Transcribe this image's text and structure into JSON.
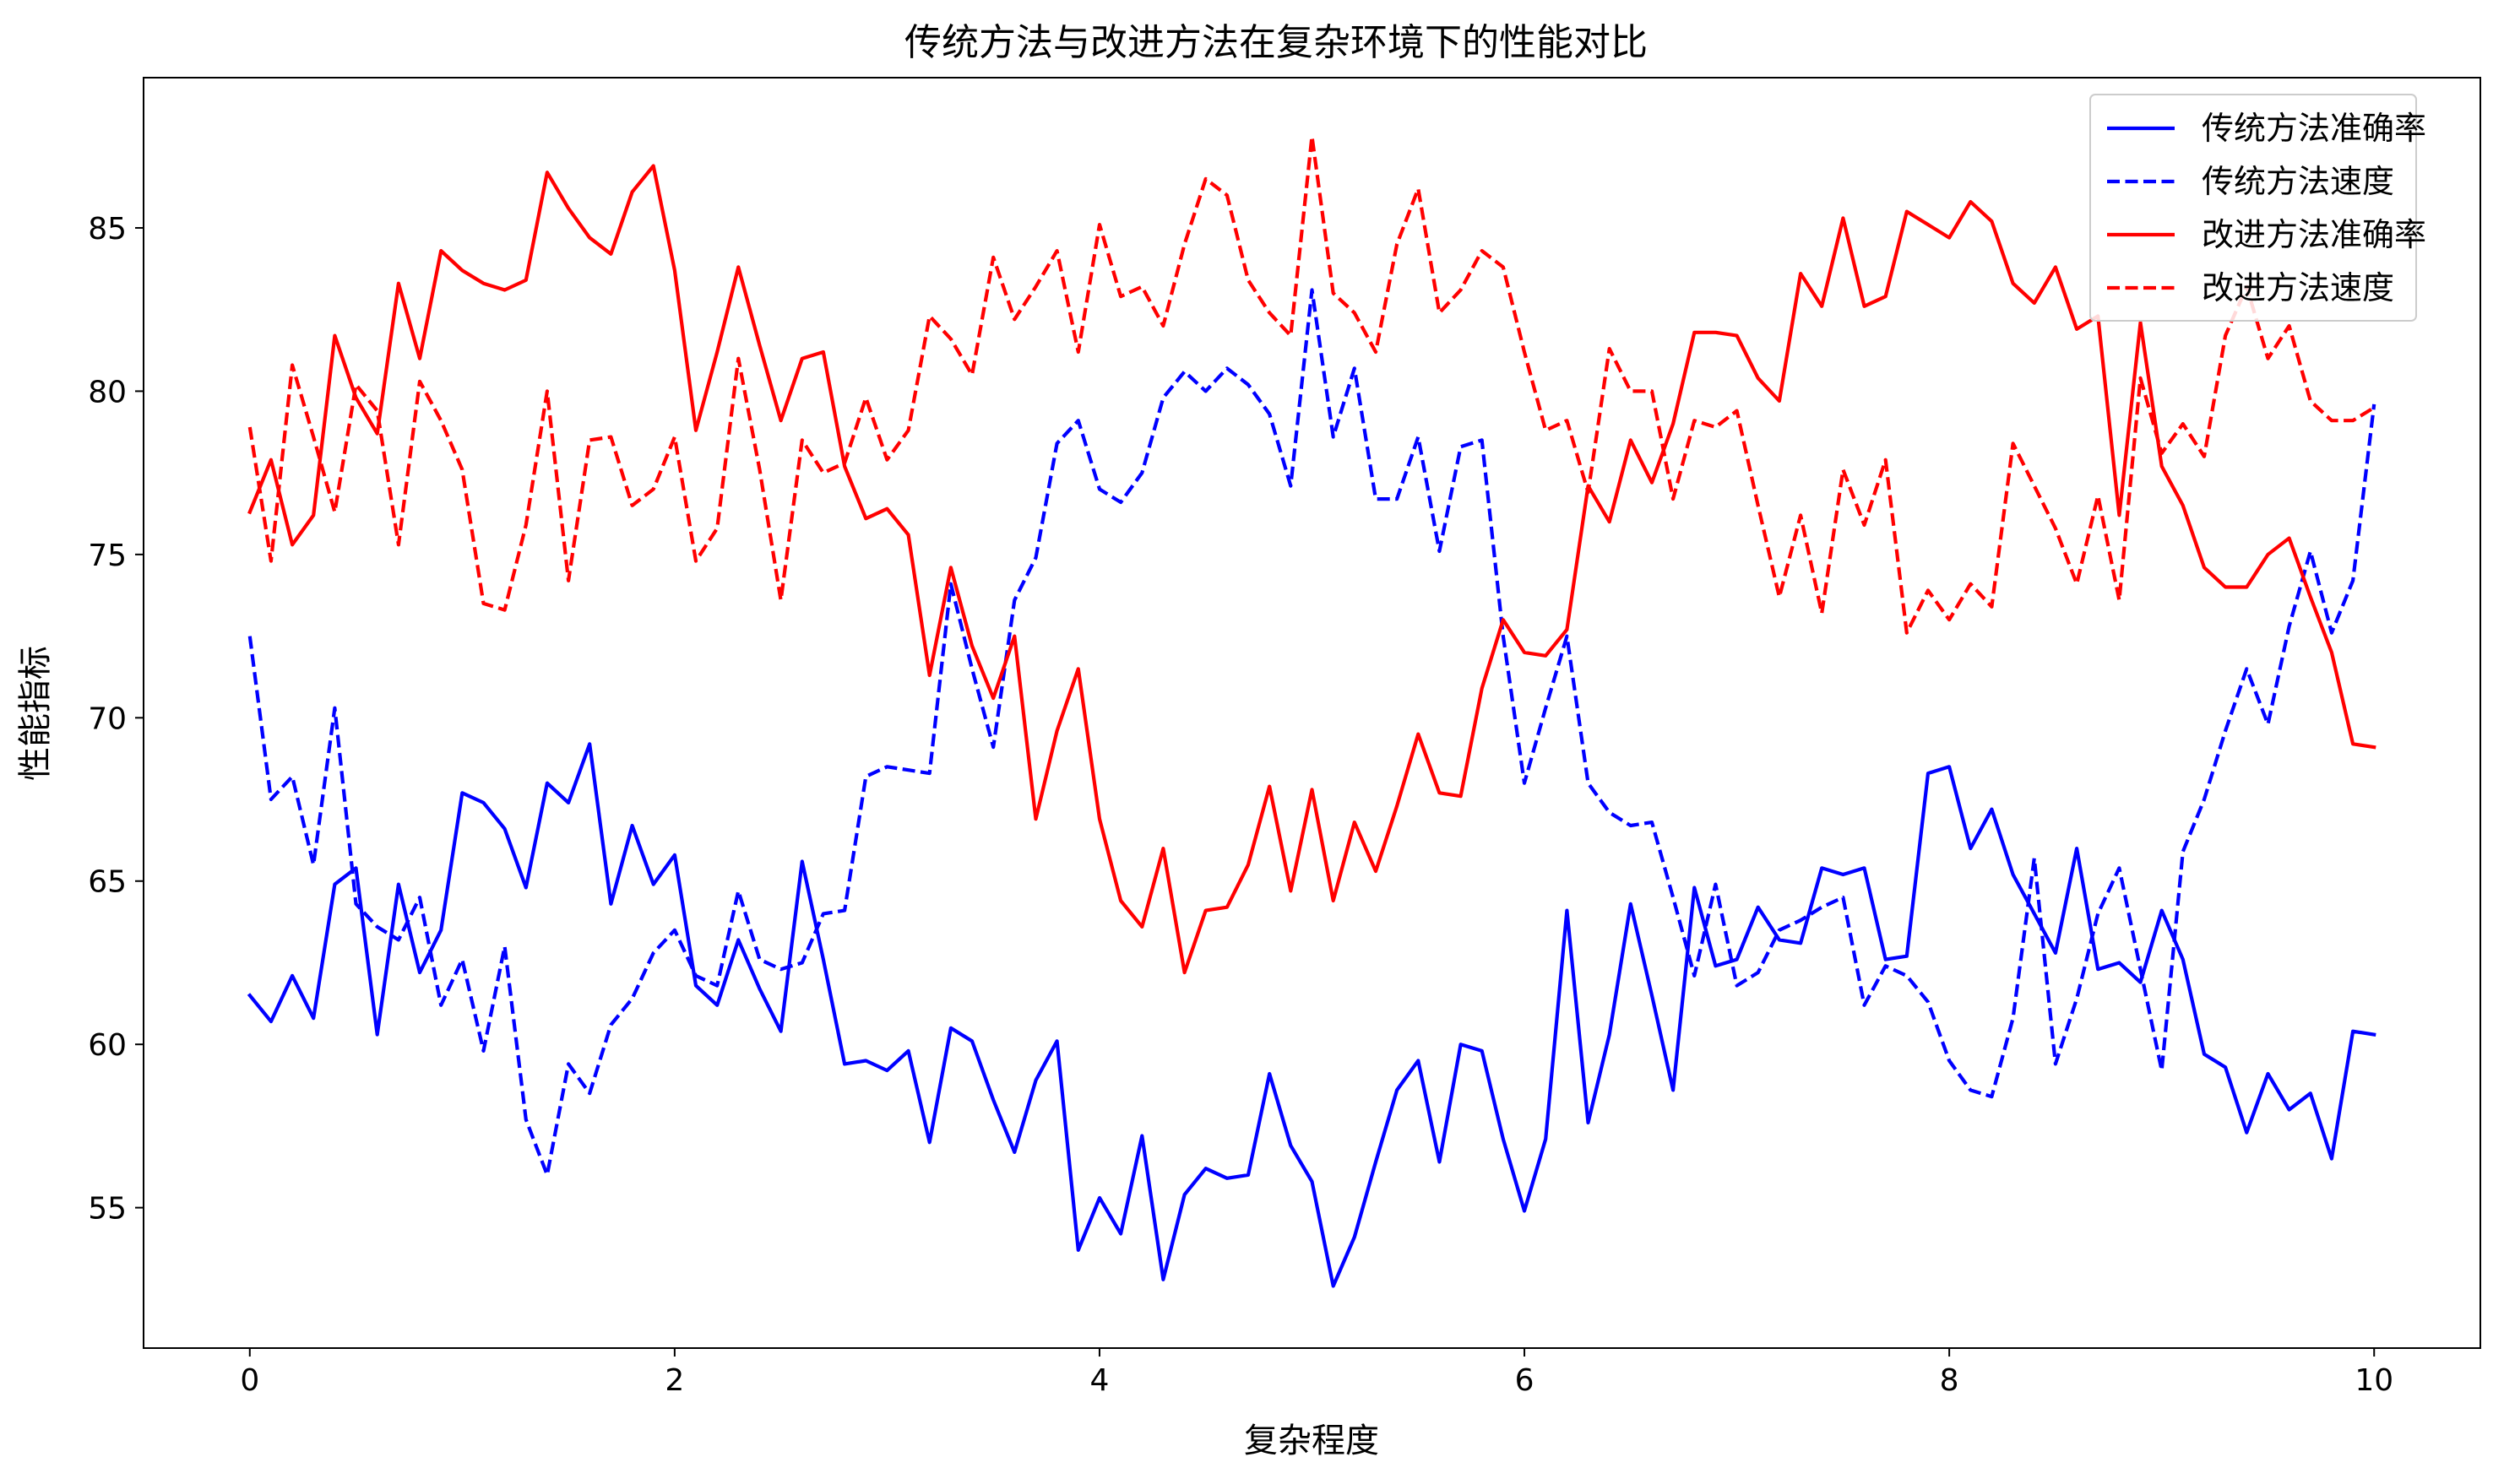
{
  "chart_data": {
    "type": "line",
    "title": "传统方法与改进方法在复杂环境下的性能对比",
    "xlabel": "复杂程度",
    "ylabel": "性能指标",
    "xlim": [
      -0.5,
      10.5
    ],
    "ylim": [
      50.7,
      89.6
    ],
    "xticks": [
      0,
      2,
      4,
      6,
      8,
      10
    ],
    "xtick_labels": [
      "0",
      "2",
      "4",
      "6",
      "8",
      "10"
    ],
    "yticks": [
      55,
      60,
      65,
      70,
      75,
      80,
      85
    ],
    "ytick_labels": [
      "55",
      "60",
      "65",
      "70",
      "75",
      "80",
      "85"
    ],
    "grid": false,
    "legend": "top-right",
    "x": [
      0,
      0.1,
      0.2,
      0.3,
      0.4,
      0.5,
      0.6,
      0.7,
      0.8,
      0.9,
      1.0,
      1.1,
      1.2,
      1.3,
      1.4,
      1.5,
      1.6,
      1.7,
      1.8,
      1.9,
      2.0,
      2.1,
      2.2,
      2.3,
      2.4,
      2.5,
      2.6,
      2.7,
      2.8,
      2.9,
      3.0,
      3.1,
      3.2,
      3.3,
      3.4,
      3.5,
      3.6,
      3.7,
      3.8,
      3.9,
      4.0,
      4.1,
      4.2,
      4.3,
      4.4,
      4.5,
      4.6,
      4.7,
      4.8,
      4.9,
      5.0,
      5.1,
      5.2,
      5.3,
      5.4,
      5.5,
      5.6,
      5.7,
      5.8,
      5.9,
      6.0,
      6.1,
      6.2,
      6.3,
      6.4,
      6.5,
      6.6,
      6.7,
      6.8,
      6.9,
      7.0,
      7.1,
      7.2,
      7.3,
      7.4,
      7.5,
      7.6,
      7.7,
      7.8,
      7.9,
      8.0,
      8.1,
      8.2,
      8.3,
      8.4,
      8.5,
      8.6,
      8.7,
      8.8,
      8.9,
      9.0,
      9.1,
      9.2,
      9.3,
      9.4,
      9.5,
      9.6,
      9.7,
      9.8,
      9.9,
      10.0
    ],
    "series": [
      {
        "name": "传统方法准确率",
        "color": "#0000ff",
        "dash": "solid",
        "values": [
          61.5,
          60.7,
          62.1,
          60.8,
          64.9,
          65.4,
          60.3,
          64.9,
          62.2,
          63.5,
          67.7,
          67.4,
          66.6,
          64.8,
          68.0,
          67.4,
          69.2,
          64.3,
          66.7,
          64.9,
          65.8,
          61.8,
          61.2,
          63.2,
          61.7,
          60.4,
          65.6,
          62.6,
          59.4,
          59.5,
          59.2,
          59.8,
          57.0,
          60.5,
          60.1,
          58.3,
          56.7,
          58.9,
          60.1,
          53.7,
          55.3,
          54.2,
          57.2,
          52.8,
          55.4,
          56.2,
          55.9,
          56.0,
          59.1,
          56.9,
          55.8,
          52.6,
          54.1,
          56.4,
          58.6,
          59.5,
          56.4,
          60.0,
          59.8,
          57.1,
          54.9,
          57.1,
          64.1,
          57.6,
          60.3,
          64.3,
          61.5,
          58.6,
          64.8,
          62.4,
          62.6,
          64.2,
          63.2,
          63.1,
          65.4,
          65.2,
          65.4,
          62.6,
          62.7,
          68.3,
          68.5,
          66.0,
          67.2,
          65.2,
          64.0,
          62.8,
          66.0,
          62.3,
          62.5,
          61.9,
          64.1,
          62.6,
          59.7,
          59.3,
          57.3,
          59.1,
          58.0,
          58.5,
          56.5,
          60.4,
          60.3
        ]
      },
      {
        "name": "传统方法速度",
        "color": "#0000ff",
        "dash": "dashed",
        "values": [
          72.5,
          67.5,
          68.2,
          65.5,
          70.3,
          64.3,
          63.6,
          63.2,
          64.5,
          61.2,
          62.6,
          59.8,
          63.0,
          57.7,
          56.0,
          59.4,
          58.5,
          60.6,
          61.4,
          62.8,
          63.5,
          62.1,
          61.8,
          64.7,
          62.6,
          62.3,
          62.5,
          64.0,
          64.1,
          68.2,
          68.5,
          68.4,
          68.3,
          74.1,
          71.5,
          69.1,
          73.6,
          74.9,
          78.4,
          79.1,
          77.0,
          76.6,
          77.5,
          79.8,
          80.6,
          80.0,
          80.7,
          80.2,
          79.3,
          77.1,
          83.1,
          78.6,
          80.7,
          76.7,
          76.7,
          78.6,
          75.1,
          78.3,
          78.5,
          72.5,
          68.0,
          70.3,
          72.5,
          68.0,
          67.1,
          66.7,
          66.8,
          64.5,
          62.1,
          64.9,
          61.8,
          62.2,
          63.5,
          63.8,
          64.2,
          64.5,
          61.2,
          62.4,
          62.1,
          61.3,
          59.5,
          58.6,
          58.4,
          60.8,
          65.7,
          59.4,
          61.4,
          64.0,
          65.4,
          62.3,
          59.2,
          65.9,
          67.5,
          69.6,
          71.5,
          69.8,
          72.8,
          75.1,
          72.6,
          74.2,
          79.6
        ]
      },
      {
        "name": "改进方法准确率",
        "color": "#ff0000",
        "dash": "solid",
        "values": [
          76.3,
          77.9,
          75.3,
          76.2,
          81.7,
          79.8,
          78.7,
          83.3,
          81.0,
          84.3,
          83.7,
          83.3,
          83.1,
          83.4,
          86.7,
          85.6,
          84.7,
          84.2,
          86.1,
          86.9,
          83.7,
          78.8,
          81.2,
          83.8,
          81.4,
          79.1,
          81.0,
          81.2,
          77.7,
          76.1,
          76.4,
          75.6,
          71.3,
          74.6,
          72.2,
          70.6,
          72.5,
          66.9,
          69.6,
          71.5,
          66.9,
          64.4,
          63.6,
          66.0,
          62.2,
          64.1,
          64.2,
          65.5,
          67.9,
          64.7,
          67.8,
          64.4,
          66.8,
          65.3,
          67.3,
          69.5,
          67.7,
          67.6,
          70.9,
          73.0,
          72.0,
          71.9,
          72.7,
          77.1,
          76.0,
          78.5,
          77.2,
          79.0,
          81.8,
          81.8,
          81.7,
          80.4,
          79.7,
          83.6,
          82.6,
          85.3,
          82.6,
          82.9,
          85.5,
          85.1,
          84.7,
          85.8,
          85.2,
          83.3,
          82.7,
          83.8,
          81.9,
          82.3,
          76.2,
          82.1,
          77.7,
          76.5,
          74.6,
          74.0,
          74.0,
          75.0,
          75.5,
          73.7,
          72.0,
          69.2,
          69.1
        ]
      },
      {
        "name": "改进方法速度",
        "color": "#ff0000",
        "dash": "dashed",
        "values": [
          78.9,
          74.8,
          80.8,
          78.6,
          76.3,
          80.2,
          79.4,
          75.3,
          80.3,
          79.1,
          77.6,
          73.5,
          73.3,
          75.9,
          80.0,
          74.2,
          78.5,
          78.6,
          76.5,
          77.0,
          78.6,
          74.8,
          75.8,
          81.0,
          77.6,
          73.6,
          78.5,
          77.5,
          77.8,
          79.8,
          77.9,
          78.8,
          82.3,
          81.6,
          80.5,
          84.1,
          82.2,
          83.2,
          84.3,
          81.2,
          85.1,
          82.9,
          83.2,
          82.0,
          84.5,
          86.5,
          86.0,
          83.4,
          82.4,
          81.7,
          87.8,
          83.0,
          82.4,
          81.2,
          84.5,
          86.2,
          82.4,
          83.1,
          84.3,
          83.8,
          81.2,
          78.8,
          79.1,
          76.9,
          81.3,
          80.0,
          80.0,
          76.7,
          79.1,
          78.9,
          79.4,
          76.5,
          73.7,
          76.2,
          73.2,
          77.6,
          75.9,
          77.9,
          72.6,
          73.9,
          73.0,
          74.1,
          73.4,
          78.4,
          77.1,
          75.8,
          74.1,
          76.8,
          73.6,
          80.4,
          78.1,
          79.0,
          78.0,
          81.7,
          83.2,
          81.0,
          82.0,
          79.7,
          79.1,
          79.1,
          79.5
        ]
      }
    ]
  }
}
